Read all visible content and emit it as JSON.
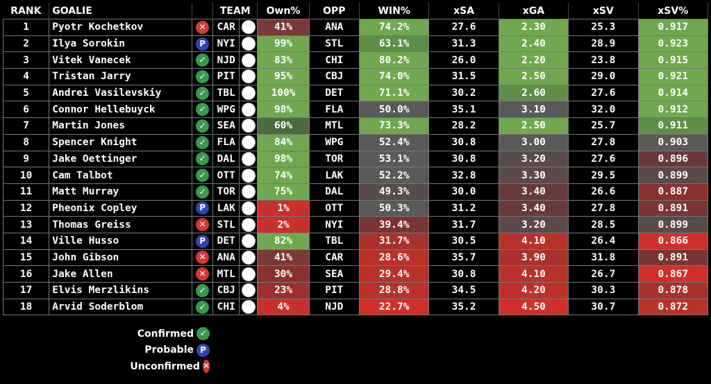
{
  "headers": [
    "RANK",
    "GOALIE",
    "",
    "TEAM",
    "",
    "Own%",
    "OPP",
    "WIN%",
    "xSA",
    "xGA",
    "xSV",
    "xSV%"
  ],
  "status_colors": {
    "confirmed": "#3a9a4a",
    "probable": "#2f43b8",
    "unconfirmed": "#d43a2f"
  },
  "status_symbols": {
    "confirmed": "✓",
    "probable": "P",
    "unconfirmed": "✕"
  },
  "legend": [
    {
      "label": "Confirmed",
      "status": "confirmed"
    },
    {
      "label": "Probable",
      "status": "probable"
    },
    {
      "label": "Unconfirmed",
      "status": "unconfirmed"
    }
  ],
  "rows": [
    {
      "rank": "1",
      "goalie": "Pyotr Kochetkov",
      "status": "unconfirmed",
      "team": "CAR",
      "own": "41%",
      "opp": "ANA",
      "win": "74.2%",
      "xsa": "27.6",
      "xga": "2.30",
      "xsv": "25.3",
      "xsvp": "0.917",
      "own_color": "#7a3a3a",
      "win_color": "#6fa84f",
      "xsa_color": "#000",
      "xga_color": "#6fa84f",
      "xsv_color": "#000",
      "xsvp_color": "#6fa84f"
    },
    {
      "rank": "2",
      "goalie": "Ilya Sorokin",
      "status": "probable",
      "team": "NYI",
      "own": "99%",
      "opp": "STL",
      "win": "63.1%",
      "xsa": "31.3",
      "xga": "2.40",
      "xsv": "28.9",
      "xsvp": "0.923",
      "own_color": "#6fa84f",
      "win_color": "#5e8e4a",
      "xsa_color": "#000",
      "xga_color": "#6fa84f",
      "xsv_color": "#000",
      "xsvp_color": "#6fa84f"
    },
    {
      "rank": "3",
      "goalie": "Vitek Vanecek",
      "status": "confirmed",
      "team": "NJD",
      "own": "83%",
      "opp": "CHI",
      "win": "80.2%",
      "xsa": "26.0",
      "xga": "2.20",
      "xsv": "23.8",
      "xsvp": "0.915",
      "own_color": "#6fa84f",
      "win_color": "#6fa84f",
      "xsa_color": "#000",
      "xga_color": "#6fa84f",
      "xsv_color": "#000",
      "xsvp_color": "#6fa84f"
    },
    {
      "rank": "4",
      "goalie": "Tristan Jarry",
      "status": "confirmed",
      "team": "PIT",
      "own": "95%",
      "opp": "CBJ",
      "win": "74.0%",
      "xsa": "31.5",
      "xga": "2.50",
      "xsv": "29.0",
      "xsvp": "0.921",
      "own_color": "#6fa84f",
      "win_color": "#6fa84f",
      "xsa_color": "#000",
      "xga_color": "#6fa84f",
      "xsv_color": "#000",
      "xsvp_color": "#6fa84f"
    },
    {
      "rank": "5",
      "goalie": "Andrei Vasilevskiy",
      "status": "confirmed",
      "team": "TBL",
      "own": "100%",
      "opp": "DET",
      "win": "71.1%",
      "xsa": "30.2",
      "xga": "2.60",
      "xsv": "27.6",
      "xsvp": "0.914",
      "own_color": "#6fa84f",
      "win_color": "#6fa84f",
      "xsa_color": "#000",
      "xga_color": "#5e8e4a",
      "xsv_color": "#000",
      "xsvp_color": "#6fa84f"
    },
    {
      "rank": "6",
      "goalie": "Connor Hellebuyck",
      "status": "confirmed",
      "team": "WPG",
      "own": "98%",
      "opp": "FLA",
      "win": "50.0%",
      "xsa": "35.1",
      "xga": "3.10",
      "xsv": "32.0",
      "xsvp": "0.912",
      "own_color": "#6fa84f",
      "win_color": "#5a5a5a",
      "xsa_color": "#000",
      "xga_color": "#5a5a5a",
      "xsv_color": "#000",
      "xsvp_color": "#6fa84f"
    },
    {
      "rank": "7",
      "goalie": "Martin Jones",
      "status": "confirmed",
      "team": "SEA",
      "own": "60%",
      "opp": "MTL",
      "win": "73.3%",
      "xsa": "28.2",
      "xga": "2.50",
      "xsv": "25.7",
      "xsvp": "0.911",
      "own_color": "#4e6a40",
      "win_color": "#6fa84f",
      "xsa_color": "#000",
      "xga_color": "#6fa84f",
      "xsv_color": "#000",
      "xsvp_color": "#5e8e4a"
    },
    {
      "rank": "8",
      "goalie": "Spencer Knight",
      "status": "confirmed",
      "team": "FLA",
      "own": "84%",
      "opp": "WPG",
      "win": "52.4%",
      "xsa": "30.8",
      "xga": "3.00",
      "xsv": "27.8",
      "xsvp": "0.903",
      "own_color": "#6fa84f",
      "win_color": "#5a5a5a",
      "xsa_color": "#000",
      "xga_color": "#5a5a5a",
      "xsv_color": "#000",
      "xsvp_color": "#5a5a5a"
    },
    {
      "rank": "9",
      "goalie": "Jake Oettinger",
      "status": "confirmed",
      "team": "DAL",
      "own": "98%",
      "opp": "TOR",
      "win": "53.1%",
      "xsa": "30.8",
      "xga": "3.20",
      "xsv": "27.6",
      "xsvp": "0.896",
      "own_color": "#6fa84f",
      "win_color": "#5a5a5a",
      "xsa_color": "#000",
      "xga_color": "#5a4a4a",
      "xsv_color": "#000",
      "xsvp_color": "#6a3a3a"
    },
    {
      "rank": "10",
      "goalie": "Cam Talbot",
      "status": "confirmed",
      "team": "OTT",
      "own": "74%",
      "opp": "LAK",
      "win": "52.2%",
      "xsa": "32.8",
      "xga": "3.30",
      "xsv": "29.5",
      "xsvp": "0.899",
      "own_color": "#6fa84f",
      "win_color": "#5a5a5a",
      "xsa_color": "#000",
      "xga_color": "#5a4a4a",
      "xsv_color": "#000",
      "xsvp_color": "#5a4a4a"
    },
    {
      "rank": "11",
      "goalie": "Matt Murray",
      "status": "confirmed",
      "team": "TOR",
      "own": "75%",
      "opp": "DAL",
      "win": "49.3%",
      "xsa": "30.0",
      "xga": "3.40",
      "xsv": "26.6",
      "xsvp": "0.887",
      "own_color": "#6fa84f",
      "win_color": "#5a4a4a",
      "xsa_color": "#000",
      "xga_color": "#6a3a3a",
      "xsv_color": "#000",
      "xsvp_color": "#8a3030"
    },
    {
      "rank": "12",
      "goalie": "Pheonix Copley",
      "status": "probable",
      "team": "LAK",
      "own": "1%",
      "opp": "OTT",
      "win": "50.3%",
      "xsa": "31.2",
      "xga": "3.40",
      "xsv": "27.8",
      "xsvp": "0.891",
      "own_color": "#c9302a",
      "win_color": "#5a5a5a",
      "xsa_color": "#000",
      "xga_color": "#6a3a3a",
      "xsv_color": "#000",
      "xsvp_color": "#7a3535"
    },
    {
      "rank": "13",
      "goalie": "Thomas Greiss",
      "status": "unconfirmed",
      "team": "STL",
      "own": "2%",
      "opp": "NYI",
      "win": "39.4%",
      "xsa": "31.7",
      "xga": "3.20",
      "xsv": "28.5",
      "xsvp": "0.899",
      "own_color": "#c9302a",
      "win_color": "#7a3535",
      "xsa_color": "#000",
      "xga_color": "#5a4a4a",
      "xsv_color": "#000",
      "xsvp_color": "#5a4a4a"
    },
    {
      "rank": "14",
      "goalie": "Ville Husso",
      "status": "probable",
      "team": "DET",
      "own": "82%",
      "opp": "TBL",
      "win": "31.7%",
      "xsa": "30.5",
      "xga": "4.10",
      "xsv": "26.4",
      "xsvp": "0.866",
      "own_color": "#6fa84f",
      "win_color": "#a8322d",
      "xsa_color": "#000",
      "xga_color": "#b8322a",
      "xsv_color": "#000",
      "xsvp_color": "#d0302a"
    },
    {
      "rank": "15",
      "goalie": "John Gibson",
      "status": "unconfirmed",
      "team": "ANA",
      "own": "41%",
      "opp": "CAR",
      "win": "28.6%",
      "xsa": "35.7",
      "xga": "3.90",
      "xsv": "31.8",
      "xsvp": "0.891",
      "own_color": "#7a3a3a",
      "win_color": "#b8322a",
      "xsa_color": "#000",
      "xga_color": "#a8322d",
      "xsv_color": "#000",
      "xsvp_color": "#7a3535"
    },
    {
      "rank": "16",
      "goalie": "Jake Allen",
      "status": "unconfirmed",
      "team": "MTL",
      "own": "30%",
      "opp": "SEA",
      "win": "29.4%",
      "xsa": "30.8",
      "xga": "4.10",
      "xsv": "26.7",
      "xsvp": "0.867",
      "own_color": "#8a3030",
      "win_color": "#b8322a",
      "xsa_color": "#000",
      "xga_color": "#b8322a",
      "xsv_color": "#000",
      "xsvp_color": "#d0302a"
    },
    {
      "rank": "17",
      "goalie": "Elvis Merzlikins",
      "status": "confirmed",
      "team": "CBJ",
      "own": "23%",
      "opp": "PIT",
      "win": "28.8%",
      "xsa": "34.5",
      "xga": "4.20",
      "xsv": "30.3",
      "xsvp": "0.878",
      "own_color": "#9a3030",
      "win_color": "#b8322a",
      "xsa_color": "#000",
      "xga_color": "#c0302a",
      "xsv_color": "#000",
      "xsvp_color": "#a8322d"
    },
    {
      "rank": "18",
      "goalie": "Arvid Soderblom",
      "status": "confirmed",
      "team": "CHI",
      "own": "4%",
      "opp": "NJD",
      "win": "22.7%",
      "xsa": "35.2",
      "xga": "4.50",
      "xsv": "30.7",
      "xsvp": "0.872",
      "own_color": "#c9302a",
      "win_color": "#d0302a",
      "xsa_color": "#000",
      "xga_color": "#d0302a",
      "xsv_color": "#000",
      "xsvp_color": "#b8322a"
    }
  ]
}
